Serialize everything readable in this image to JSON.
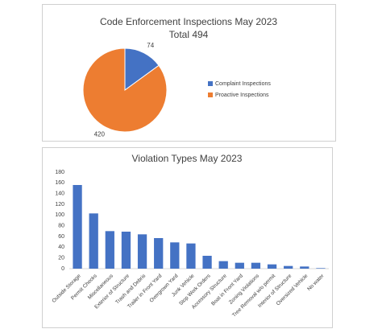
{
  "chart_data": [
    {
      "type": "pie",
      "title": "Code Enforcement Inspections May 2023",
      "subtitle": "Total 494",
      "categories": [
        "Complaint Inspections",
        "Proactive Inspections"
      ],
      "values": [
        74,
        420
      ],
      "colors": [
        "#4472c4",
        "#ed7d31"
      ],
      "legend": "right"
    },
    {
      "type": "bar",
      "title": "Violation Types May 2023",
      "categories": [
        "Outside Storage",
        "Permit Checks",
        "Miscellaneous",
        "Exterior of Structure",
        "Trash and Debris",
        "Trailer in Front Yard",
        "Overgrown Yard",
        "Junk Vehicle",
        "Stop Work Orders",
        "Accessory Structure",
        "Boat in Front Yard",
        "Zoning Violations",
        "Tree Removal w/o permit",
        "Interior of Structure",
        "Oversized Vehicle",
        "No water"
      ],
      "values": [
        156,
        103,
        70,
        69,
        64,
        57,
        49,
        47,
        24,
        14,
        11,
        11,
        8,
        5,
        4,
        1
      ],
      "color": "#4472c4",
      "ylim": [
        0,
        180
      ],
      "yticks": [
        0,
        20,
        40,
        60,
        80,
        100,
        120,
        140,
        160,
        180
      ],
      "grid": false
    }
  ]
}
